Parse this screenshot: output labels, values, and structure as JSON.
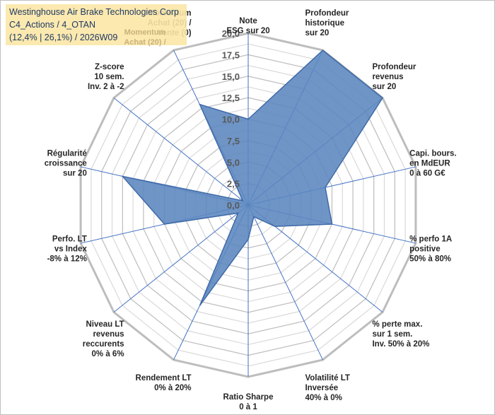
{
  "chart_data": {
    "type": "radar",
    "title_lines": [
      "Westinghouse Air Brake Technologies Corp",
      "C4_Actions / 4_OTAN",
      "(12,4% | 26,1%) / 2026W09"
    ],
    "momentum_lines": [
      "Momentum",
      "Achat (20) /",
      "Vente (0)"
    ],
    "r_range": [
      0,
      20
    ],
    "r_ticks": [
      "0,0",
      "2,5",
      "5,0",
      "7,5",
      "10,0",
      "12,5",
      "15,0",
      "17,5",
      "20,0"
    ],
    "axes": [
      {
        "label": [
          "Note",
          "ESG sur 20"
        ],
        "value": 10.0
      },
      {
        "label": [
          "Profondeur",
          "historique",
          "sur 20"
        ],
        "value": 20.0
      },
      {
        "label": [
          "Profondeur",
          "revenus",
          "sur 20"
        ],
        "value": 20.0
      },
      {
        "label": [
          "Capi. bours.",
          "en MdEUR",
          "0 à 60 G€"
        ],
        "value": 9.2
      },
      {
        "label": [
          "% perfo 1A",
          "positive",
          "50% à 80%"
        ],
        "value": 10.0
      },
      {
        "label": [
          "% perte max.",
          "sur 1 sem.",
          "Inv. 50% à 20%"
        ],
        "value": 4.0
      },
      {
        "label": [
          "Volatilité LT",
          "Inversée",
          "40% à 0%"
        ],
        "value": 1.5
      },
      {
        "label": [
          "Ratio Sharpe",
          "0 à 1"
        ],
        "value": 4.0
      },
      {
        "label": [
          "Rendement LT",
          "0% à 20%"
        ],
        "value": 13.0
      },
      {
        "label": [
          "Niveau LT",
          "revenus",
          "reccurents",
          "0% à 6%"
        ],
        "value": 1.5
      },
      {
        "label": [
          "Perfo. LT",
          "vs Index",
          "-8% à 12%"
        ],
        "value": 10.0
      },
      {
        "label": [
          "Régularité",
          "croissance",
          "sur 20"
        ],
        "value": 15.0
      },
      {
        "label": [
          "Z-score",
          "10 sem.",
          "Inv. 2 à -2"
        ],
        "value": 0.8
      },
      {
        "label": [
          "Momentum",
          "Achat (20) /",
          "Vente (0)"
        ],
        "value": 13.0
      }
    ],
    "colors": {
      "fill": "#5b86bf",
      "stroke": "#3f6aa8",
      "grid": "#c9c9c9",
      "spoke": "#4472c4",
      "title_bg": "#fbe7a6"
    }
  }
}
